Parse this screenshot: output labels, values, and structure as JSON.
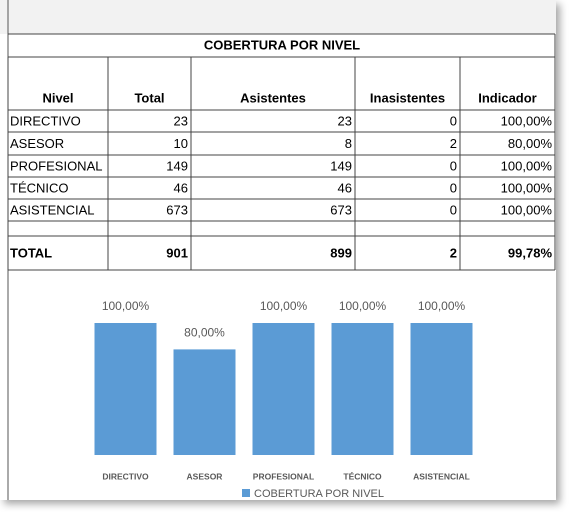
{
  "table": {
    "title": "COBERTURA POR NIVEL",
    "columns": [
      "Nivel",
      "Total",
      "Asistentes",
      "Inasistentes",
      "Indicador"
    ],
    "rows": [
      [
        "DIRECTIVO",
        "23",
        "23",
        "0",
        "100,00%"
      ],
      [
        "ASESOR",
        "10",
        "8",
        "2",
        "80,00%"
      ],
      [
        "PROFESIONAL",
        "149",
        "149",
        "0",
        "100,00%"
      ],
      [
        "TÉCNICO",
        "46",
        "46",
        "0",
        "100,00%"
      ],
      [
        "ASISTENCIAL",
        "673",
        "673",
        "0",
        "100,00%"
      ]
    ],
    "total": [
      "TOTAL",
      "901",
      "899",
      "2",
      "99,78%"
    ]
  },
  "chart_data": {
    "type": "bar",
    "categories": [
      "DIRECTIVO",
      "ASESOR",
      "PROFESIONAL",
      "TÉCNICO",
      "ASISTENCIAL"
    ],
    "series": [
      {
        "name": "COBERTURA POR NIVEL",
        "color": "#5b9bd5",
        "values": [
          100,
          80,
          100,
          100,
          100
        ],
        "value_labels": [
          "100,00%",
          "80,00%",
          "100,00%",
          "100,00%",
          "100,00%"
        ]
      }
    ],
    "ylim": [
      0,
      100
    ]
  }
}
